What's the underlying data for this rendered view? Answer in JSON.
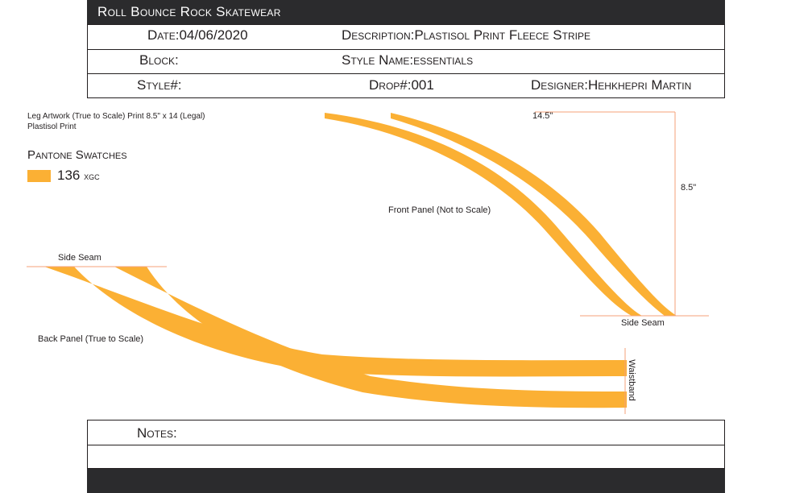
{
  "header": {
    "brand": "Roll Bounce Rock Skatewear",
    "date_label": "Date:",
    "date_value": "04/06/2020",
    "description_label": "Description:",
    "description_value": "Plastisol Print Fleece Stripe",
    "block_label": "Block:",
    "style_name_label": "Style Name:",
    "style_name_value": "essentials",
    "style_num_label": "Style#:",
    "drop_label": "Drop#:",
    "drop_value": "001",
    "designer_label": "Designer:",
    "designer_value": "Hehkhepri Martin"
  },
  "artwork": {
    "line1": "Leg Artwork (True to Scale) Print 8.5\" x 14 (Legal)",
    "line2": "Plastisol Print"
  },
  "swatches": {
    "title": "Pantone Swatches",
    "items": [
      {
        "code": "136",
        "suffix": "xgc",
        "color": "#fbb034"
      }
    ]
  },
  "front_panel": {
    "label": "Front Panel (Not to Scale)",
    "width_label": "14.5\"",
    "height_label": "8.5\"",
    "side_seam_label": "Side Seam"
  },
  "back_panel": {
    "label": "Back Panel (True to Scale)",
    "side_seam_label": "Side Seam",
    "waistband_label": "Waistband"
  },
  "notes": {
    "label": "Notes:"
  },
  "colors": {
    "stripe": "#fbb034",
    "guide": "#f4a27a",
    "bar": "#2b2b2d"
  }
}
